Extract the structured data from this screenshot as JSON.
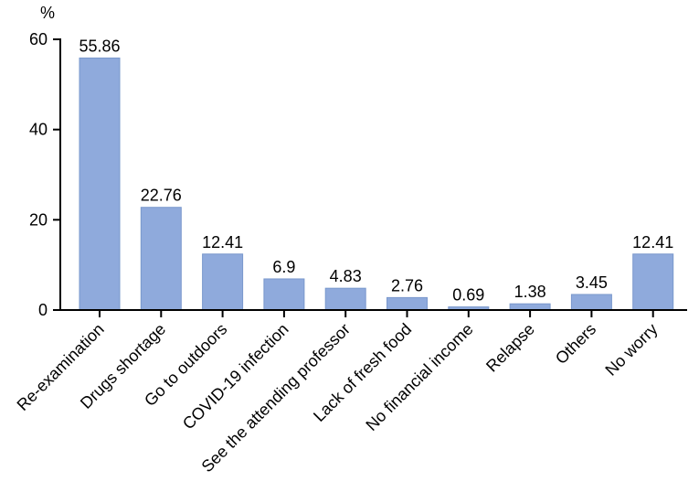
{
  "chart_data": {
    "type": "bar",
    "ylabel": "%",
    "ylim": [
      0,
      60
    ],
    "yticks": [
      "0",
      "20",
      "40",
      "60"
    ],
    "grid": false,
    "bar_color": "#8faadc",
    "bar_edge_color": "#7a98cc",
    "categories": [
      "Re-examination",
      "Drugs shortage",
      "Go to outdoors",
      "COVID-19 infection",
      "See the attending professor",
      "Lack of fresh food",
      "No financial income",
      "Relapse",
      "Others",
      "No worry"
    ],
    "values": [
      55.86,
      22.76,
      12.41,
      6.9,
      4.83,
      2.76,
      0.69,
      1.38,
      3.45,
      12.41
    ],
    "data_labels": [
      "55.86",
      "22.76",
      "12.41",
      "6.9",
      "4.83",
      "2.76",
      "0.69",
      "1.38",
      "3.45",
      "12.41"
    ]
  }
}
